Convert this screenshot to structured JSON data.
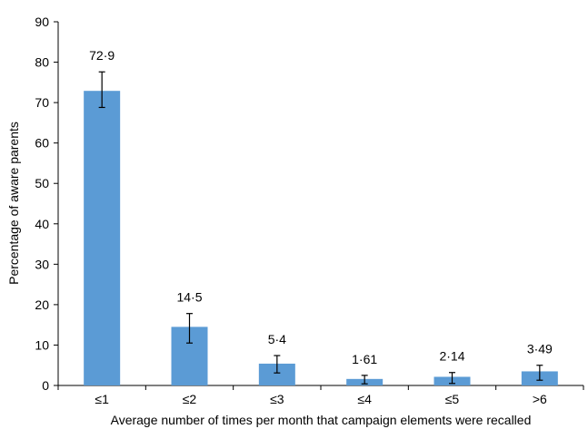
{
  "chart_data": {
    "type": "bar",
    "categories": [
      "≤1",
      "≤2",
      "≤3",
      "≤4",
      "≤5",
      ">6"
    ],
    "values": [
      72.9,
      14.5,
      5.4,
      1.61,
      2.14,
      3.49
    ],
    "value_labels": [
      "72·9",
      "14·5",
      "5·4",
      "1·61",
      "2·14",
      "3·49"
    ],
    "error_low": [
      68.8,
      10.5,
      3.1,
      0.4,
      0.5,
      1.3
    ],
    "error_high": [
      77.6,
      17.8,
      7.4,
      2.5,
      3.2,
      5.0
    ],
    "xlabel": "Average number of times per month that campaign elements were recalled",
    "ylabel": "Percentage of aware parents",
    "ylim": [
      0,
      90
    ],
    "yticks": [
      0,
      10,
      20,
      30,
      40,
      50,
      60,
      70,
      80,
      90
    ],
    "bar_color": "#5b9bd5",
    "grid": false,
    "legend": "none"
  }
}
